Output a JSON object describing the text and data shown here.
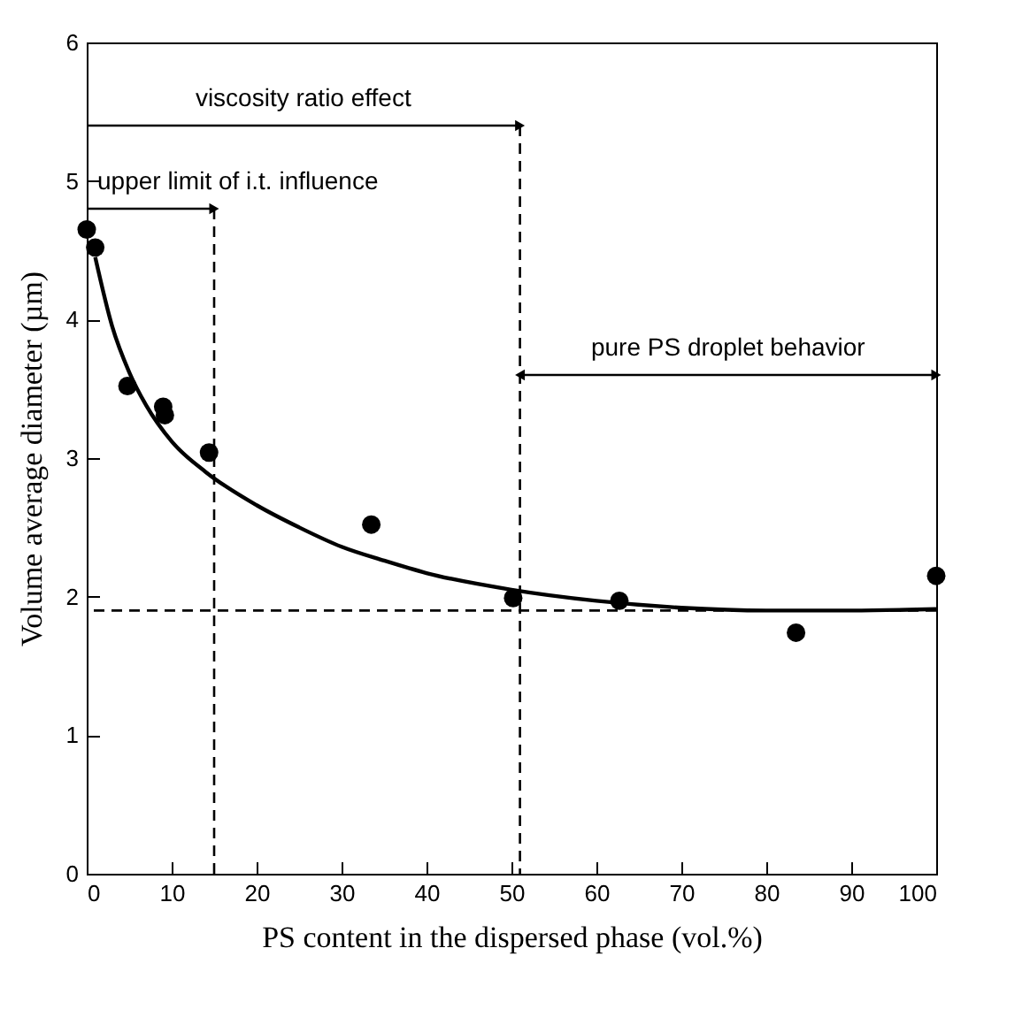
{
  "chart_data": {
    "type": "scatter",
    "xlabel": "PS content in the dispersed phase (vol.%)",
    "ylabel": "Volume average diameter (µm)",
    "xlim": [
      0,
      100
    ],
    "ylim": [
      0,
      6
    ],
    "xticks": [
      0,
      10,
      20,
      30,
      40,
      50,
      60,
      70,
      80,
      90,
      100
    ],
    "yticks": [
      0,
      1,
      2,
      3,
      4,
      5,
      6
    ],
    "grid": false,
    "series": [
      {
        "color": "#000000",
        "marker": "circle",
        "x": [
          0,
          1,
          4.8,
          9,
          9.2,
          14.4,
          33.5,
          50.2,
          62.7,
          83.5,
          100
        ],
        "values": [
          4.65,
          4.52,
          3.52,
          3.37,
          3.31,
          3.04,
          2.52,
          1.99,
          1.97,
          1.74,
          2.15
        ]
      },
      {
        "type": "line",
        "color": "#000000",
        "marker": "none",
        "line_style": "solid",
        "x": [
          1,
          3,
          5,
          7,
          10,
          14,
          20,
          25,
          30,
          35,
          40,
          50,
          60,
          70,
          80,
          90,
          100
        ],
        "values": [
          4.45,
          3.95,
          3.62,
          3.38,
          3.12,
          2.9,
          2.66,
          2.5,
          2.36,
          2.26,
          2.17,
          2.05,
          1.97,
          1.92,
          1.9,
          1.9,
          1.91
        ]
      }
    ],
    "ref_lines": [
      {
        "axis": "y",
        "value": 1.9,
        "line_style": "dashed",
        "color": "#000000"
      },
      {
        "axis": "x",
        "value": 15,
        "line_style": "dashed",
        "color": "#000000"
      },
      {
        "axis": "x",
        "value": 51,
        "line_style": "dashed",
        "color": "#000000"
      }
    ],
    "annotations": [
      "viscosity ratio effect",
      "upper limit of i.t. influence",
      "pure PS droplet behavior"
    ]
  }
}
